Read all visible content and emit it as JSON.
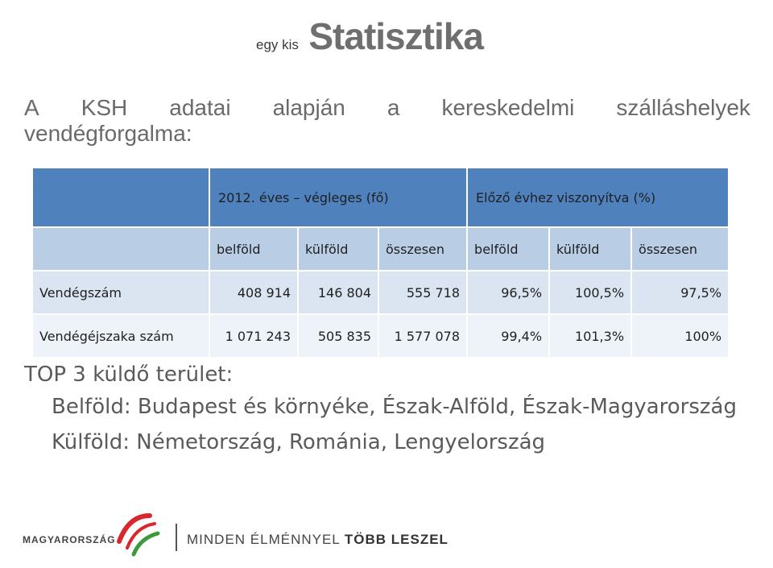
{
  "title": {
    "small": "egy kis",
    "big": "Statisztika"
  },
  "intro": {
    "words": [
      "A",
      "KSH",
      "adatai",
      "alapján",
      "a",
      "kereskedelmi",
      "szálláshelyek"
    ],
    "line2": "vendégforgalma:"
  },
  "table": {
    "header_group_1": "2012. éves – végleges (fő)",
    "header_group_2": "Előző évhez viszonyítva (%)",
    "subheaders": [
      "belföld",
      "külföld",
      "összesen",
      "belföld",
      "külföld",
      "összesen"
    ],
    "rows": [
      {
        "label": "Vendégszám",
        "values": [
          "408 914",
          "146 804",
          "555 718",
          "96,5%",
          "100,5%",
          "97,5%"
        ]
      },
      {
        "label": "Vendégéjszaka szám",
        "values": [
          "1 071 243",
          "505 835",
          "1 577 078",
          "99,4%",
          "101,3%",
          "100%"
        ]
      }
    ]
  },
  "top3": {
    "heading": "TOP 3 küldő terület:",
    "domestic": "Belföld: Budapest és környéke, Észak-Alföld, Észak-Magyarország",
    "foreign": "Külföld: Németország, Románia, Lengyelország"
  },
  "footer": {
    "logo_text": "MAGYARORSZÁG",
    "slogan_part1": "MINDEN ÉLMÉNNYEL",
    "slogan_part2": "TÖBB LESZEL",
    "colors": {
      "red": "#d9272e",
      "green": "#3c9a3c"
    }
  }
}
